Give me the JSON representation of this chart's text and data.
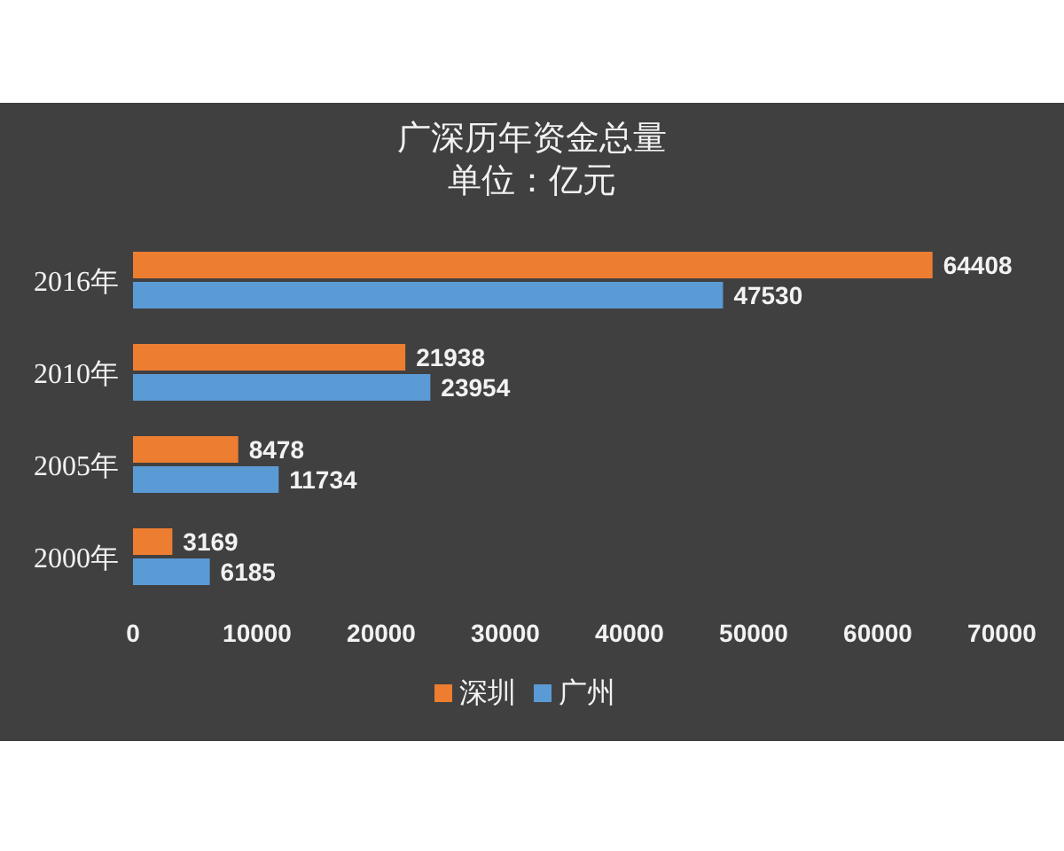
{
  "chart_data": {
    "type": "bar",
    "orientation": "horizontal",
    "title": "广深历年资金总量",
    "subtitle": "单位：亿元",
    "categories": [
      "2016年",
      "2010年",
      "2005年",
      "2000年"
    ],
    "series": [
      {
        "name": "深圳",
        "color": "#ed7d31",
        "values": [
          64408,
          21938,
          8478,
          3169
        ]
      },
      {
        "name": "广州",
        "color": "#5b9bd5",
        "values": [
          47530,
          23954,
          11734,
          6185
        ]
      }
    ],
    "xlim": [
      0,
      70000
    ],
    "xticks": [
      0,
      10000,
      20000,
      30000,
      40000,
      50000,
      60000,
      70000
    ],
    "data_labels": true,
    "legend": "bottom"
  }
}
